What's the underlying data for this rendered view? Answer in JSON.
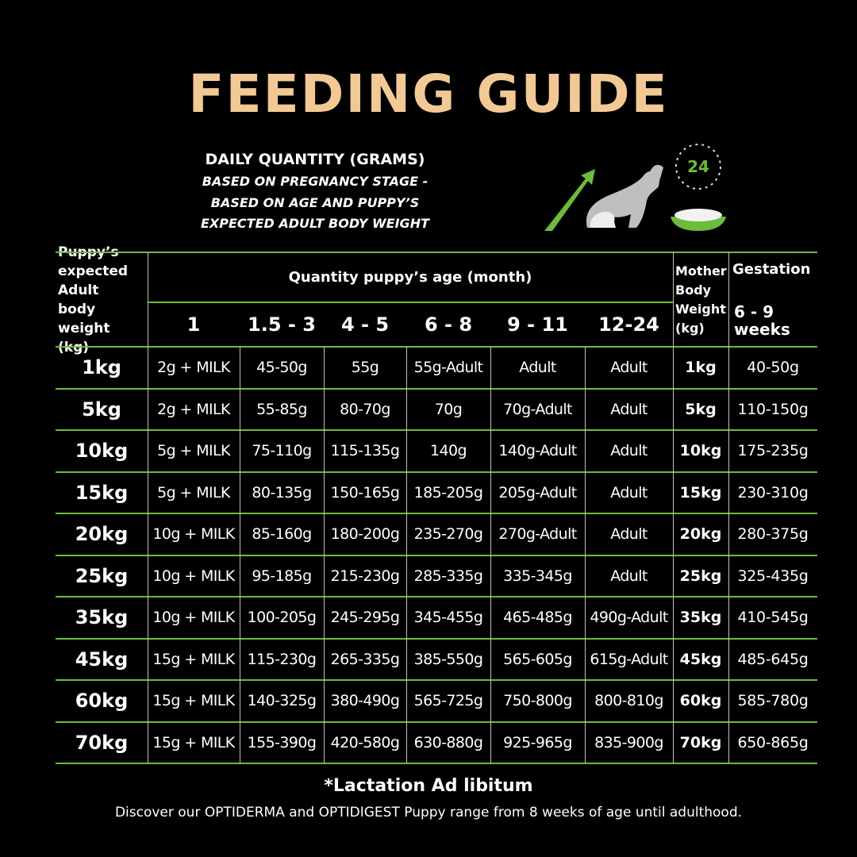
{
  "header": {
    "title": "FEEDING GUIDE",
    "subtitle": "DAILY QUANTITY (GRAMS)",
    "notes": [
      "BASED ON PREGNANCY STAGE -",
      "BASED ON AGE AND PUPPY’S",
      "EXPECTED ADULT BODY WEIGHT"
    ],
    "clock_label": "24"
  },
  "table": {
    "weight_header": "Puppy’s expected Adult body weight (kg)",
    "age_header": "Quantity puppy’s age (month)",
    "age_columns": [
      "1",
      "1.5 - 3",
      "4 - 5",
      "6 - 8",
      "9 - 11",
      "12-24"
    ],
    "mother_header": "Mother Body Weight (kg)",
    "gestation_header": "Gestation",
    "gestation_subheader": "6 - 9 weeks",
    "rows": [
      {
        "weight": "1kg",
        "quantities": [
          "2g + MILK",
          "45-50g",
          "55g",
          "55g-Adult",
          "Adult",
          "Adult"
        ],
        "mother_weight": "1kg",
        "gestation": "40-50g"
      },
      {
        "weight": "5kg",
        "quantities": [
          "2g + MILK",
          "55-85g",
          "80-70g",
          "70g",
          "70g-Adult",
          "Adult"
        ],
        "mother_weight": "5kg",
        "gestation": "110-150g"
      },
      {
        "weight": "10kg",
        "quantities": [
          "5g + MILK",
          "75-110g",
          "115-135g",
          "140g",
          "140g-Adult",
          "Adult"
        ],
        "mother_weight": "10kg",
        "gestation": "175-235g"
      },
      {
        "weight": "15kg",
        "quantities": [
          "5g + MILK",
          "80-135g",
          "150-165g",
          "185-205g",
          "205g-Adult",
          "Adult"
        ],
        "mother_weight": "15kg",
        "gestation": "230-310g"
      },
      {
        "weight": "20kg",
        "quantities": [
          "10g + MILK",
          "85-160g",
          "180-200g",
          "235-270g",
          "270g-Adult",
          "Adult"
        ],
        "mother_weight": "20kg",
        "gestation": "280-375g"
      },
      {
        "weight": "25kg",
        "quantities": [
          "10g + MILK",
          "95-185g",
          "215-230g",
          "285-335g",
          "335-345g",
          "Adult"
        ],
        "mother_weight": "25kg",
        "gestation": "325-435g"
      },
      {
        "weight": "35kg",
        "quantities": [
          "10g + MILK",
          "100-205g",
          "245-295g",
          "345-455g",
          "465-485g",
          "490g-Adult"
        ],
        "mother_weight": "35kg",
        "gestation": "410-545g"
      },
      {
        "weight": "45kg",
        "quantities": [
          "15g + MILK",
          "115-230g",
          "265-335g",
          "385-550g",
          "565-605g",
          "615g-Adult"
        ],
        "mother_weight": "45kg",
        "gestation": "485-645g"
      },
      {
        "weight": "60kg",
        "quantities": [
          "15g + MILK",
          "140-325g",
          "380-490g",
          "565-725g",
          "750-800g",
          "800-810g"
        ],
        "mother_weight": "60kg",
        "gestation": "585-780g"
      },
      {
        "weight": "70kg",
        "quantities": [
          "15g + MILK",
          "155-390g",
          "420-580g",
          "630-880g",
          "925-965g",
          "835-900g"
        ],
        "mother_weight": "70kg",
        "gestation": "650-865g"
      }
    ]
  },
  "footer": {
    "note": "*Lactation Ad libitum",
    "text": "Discover our OPTIDERMA and OPTIDIGEST Puppy range from 8 weeks of age until adulthood."
  }
}
